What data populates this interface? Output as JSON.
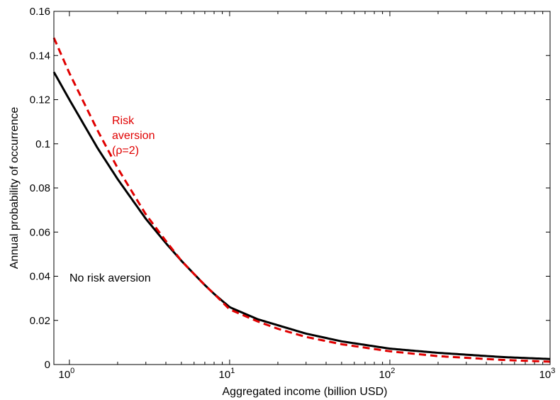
{
  "chart_data": {
    "type": "line",
    "xlabel": "Aggregated income (billion USD)",
    "ylabel": "Annual probability of occurrence",
    "xscale": "log",
    "xlim": [
      0.8,
      1000
    ],
    "ylim": [
      0,
      0.16
    ],
    "xticks": [
      {
        "value": 1,
        "base": "10",
        "exp": "0"
      },
      {
        "value": 10,
        "base": "10",
        "exp": "1"
      },
      {
        "value": 100,
        "base": "10",
        "exp": "2"
      },
      {
        "value": 1000,
        "base": "10",
        "exp": "3"
      }
    ],
    "yticks": [
      {
        "value": 0,
        "label": "0"
      },
      {
        "value": 0.02,
        "label": "0.02"
      },
      {
        "value": 0.04,
        "label": "0.04"
      },
      {
        "value": 0.06,
        "label": "0.06"
      },
      {
        "value": 0.08,
        "label": "0.08"
      },
      {
        "value": 0.1,
        "label": "0.1"
      },
      {
        "value": 0.12,
        "label": "0.12"
      },
      {
        "value": 0.14,
        "label": "0.14"
      },
      {
        "value": 0.16,
        "label": "0.16"
      }
    ],
    "grid": false,
    "legend": "none",
    "series": [
      {
        "color": "#000000",
        "dash": "solid",
        "x": [
          0.8,
          1,
          1.5,
          2,
          3,
          4,
          5,
          6,
          7,
          8,
          10,
          15,
          20,
          30,
          50,
          100,
          200,
          500,
          1000
        ],
        "y": [
          0.1325,
          0.12,
          0.098,
          0.084,
          0.066,
          0.055,
          0.047,
          0.041,
          0.036,
          0.032,
          0.026,
          0.0205,
          0.0178,
          0.014,
          0.0105,
          0.0072,
          0.0053,
          0.0034,
          0.0025
        ]
      },
      {
        "color": "#e00000",
        "dash": "dashed",
        "x": [
          0.8,
          1,
          1.5,
          2,
          3,
          4,
          5,
          6,
          7,
          8,
          10,
          15,
          20,
          30,
          50,
          100,
          200,
          500,
          1000
        ],
        "y": [
          0.148,
          0.132,
          0.106,
          0.089,
          0.068,
          0.056,
          0.047,
          0.041,
          0.036,
          0.032,
          0.025,
          0.0195,
          0.0162,
          0.0125,
          0.0092,
          0.006,
          0.0038,
          0.0021,
          0.0013
        ]
      }
    ],
    "annotations": [
      {
        "lines": [
          "Risk",
          "aversion",
          "(ρ=2)"
        ],
        "color": "#e00000"
      },
      {
        "lines": [
          "No risk aversion"
        ],
        "color": "#000000"
      }
    ]
  }
}
